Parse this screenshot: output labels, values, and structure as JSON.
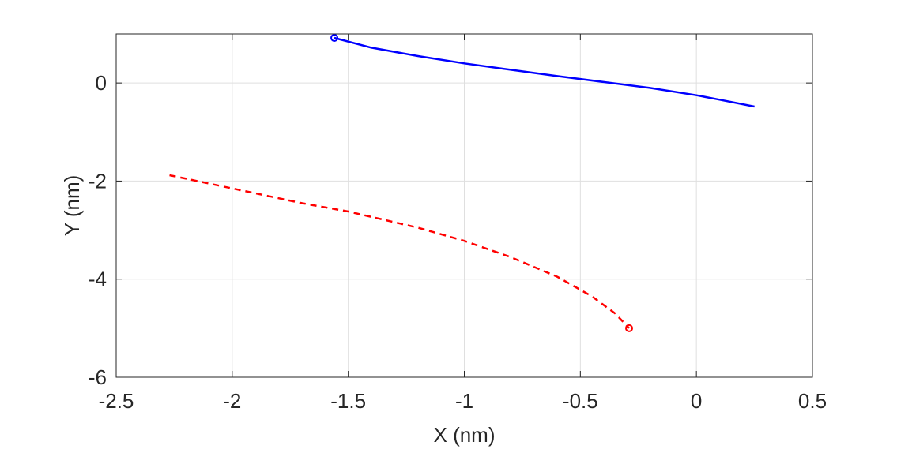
{
  "chart_data": {
    "type": "line",
    "title": "",
    "xlabel": "X (nm)",
    "ylabel": "Y (nm)",
    "xlim": [
      -2.5,
      0.5
    ],
    "ylim": [
      -6,
      1
    ],
    "xticks": [
      -2.5,
      -2,
      -1.5,
      -1,
      -0.5,
      0,
      0.5
    ],
    "xtick_labels": [
      "-2.5",
      "-2",
      "-1.5",
      "-1",
      "-0.5",
      "0",
      "0.5"
    ],
    "yticks": [
      -6,
      -4,
      -2,
      0
    ],
    "ytick_labels": [
      "-6",
      "-4",
      "-2",
      "0"
    ],
    "grid": true,
    "series": [
      {
        "color": "#0000ff",
        "line_style": "solid",
        "start_marker": "circle",
        "x": [
          -1.56,
          -1.4,
          -1.2,
          -1.0,
          -0.8,
          -0.6,
          -0.4,
          -0.2,
          0.0,
          0.1,
          0.25
        ],
        "y": [
          0.92,
          0.72,
          0.55,
          0.4,
          0.27,
          0.14,
          0.02,
          -0.1,
          -0.25,
          -0.34,
          -0.48
        ]
      },
      {
        "color": "#ff0000",
        "line_style": "dashed",
        "end_marker": "circle",
        "x": [
          -2.27,
          -2.0,
          -1.7,
          -1.5,
          -1.2,
          -1.0,
          -0.8,
          -0.6,
          -0.45,
          -0.35,
          -0.29
        ],
        "y": [
          -1.88,
          -2.15,
          -2.45,
          -2.62,
          -2.95,
          -3.22,
          -3.55,
          -3.95,
          -4.35,
          -4.7,
          -5.0
        ]
      }
    ]
  }
}
